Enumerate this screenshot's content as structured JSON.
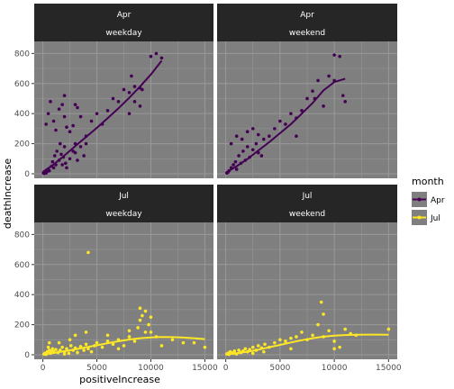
{
  "chart_data": {
    "type": "scatter",
    "xlabel": "positiveIncrease",
    "ylabel": "deathIncrease",
    "xlim": [
      -800,
      15800
    ],
    "ylim": [
      -30,
      880
    ],
    "x_ticks": [
      0,
      5000,
      10000,
      15000
    ],
    "y_ticks": [
      0,
      200,
      400,
      600,
      800
    ],
    "grid": true,
    "legend": {
      "title": "month",
      "position": "right",
      "entries": [
        "Apr",
        "Jul"
      ]
    },
    "colors": {
      "Apr": "#440154",
      "Jul": "#FDE725",
      "panel_bg": "#7F7F7F",
      "strip_bg": "#262626",
      "grid": "#999999"
    },
    "facets": [
      {
        "month": "Apr",
        "day_type": "weekday",
        "points": [
          [
            50,
            5
          ],
          [
            120,
            2
          ],
          [
            200,
            10
          ],
          [
            300,
            5
          ],
          [
            400,
            15
          ],
          [
            500,
            30
          ],
          [
            600,
            20
          ],
          [
            800,
            50
          ],
          [
            900,
            80
          ],
          [
            1000,
            40
          ],
          [
            1100,
            120
          ],
          [
            1200,
            60
          ],
          [
            1300,
            150
          ],
          [
            1500,
            90
          ],
          [
            1600,
            200
          ],
          [
            1700,
            130
          ],
          [
            1800,
            60
          ],
          [
            1900,
            110
          ],
          [
            2000,
            180
          ],
          [
            2100,
            70
          ],
          [
            2200,
            40
          ],
          [
            2500,
            100
          ],
          [
            2800,
            150
          ],
          [
            3000,
            140
          ],
          [
            3200,
            90
          ],
          [
            3500,
            180
          ],
          [
            3800,
            120
          ],
          [
            4000,
            200
          ],
          [
            300,
            330
          ],
          [
            500,
            400
          ],
          [
            700,
            480
          ],
          [
            1000,
            350
          ],
          [
            1200,
            290
          ],
          [
            1500,
            430
          ],
          [
            1800,
            460
          ],
          [
            2000,
            380
          ],
          [
            2200,
            310
          ],
          [
            2500,
            280
          ],
          [
            2800,
            320
          ],
          [
            3000,
            200
          ],
          [
            3200,
            440
          ],
          [
            3500,
            380
          ],
          [
            4000,
            250
          ],
          [
            4500,
            350
          ],
          [
            5000,
            400
          ],
          [
            5500,
            330
          ],
          [
            6000,
            420
          ],
          [
            6500,
            500
          ],
          [
            7000,
            480
          ],
          [
            7500,
            560
          ],
          [
            8000,
            540
          ],
          [
            8200,
            650
          ],
          [
            8500,
            580
          ],
          [
            9000,
            570
          ],
          [
            9200,
            560
          ],
          [
            10000,
            780
          ],
          [
            10500,
            800
          ],
          [
            11000,
            770
          ],
          [
            8000,
            400
          ],
          [
            8500,
            480
          ],
          [
            9000,
            450
          ],
          [
            2000,
            520
          ],
          [
            3000,
            460
          ]
        ],
        "trend": [
          [
            0,
            12
          ],
          [
            1000,
            62
          ],
          [
            2000,
            122
          ],
          [
            3000,
            184
          ],
          [
            4000,
            245
          ],
          [
            5000,
            305
          ],
          [
            6000,
            370
          ],
          [
            7000,
            435
          ],
          [
            8000,
            505
          ],
          [
            9000,
            580
          ],
          [
            10000,
            660
          ],
          [
            11000,
            752
          ]
        ]
      },
      {
        "month": "Apr",
        "day_type": "weekend",
        "points": [
          [
            100,
            5
          ],
          [
            200,
            10
          ],
          [
            300,
            20
          ],
          [
            500,
            40
          ],
          [
            700,
            60
          ],
          [
            900,
            80
          ],
          [
            1000,
            30
          ],
          [
            1200,
            120
          ],
          [
            1400,
            70
          ],
          [
            1600,
            150
          ],
          [
            1800,
            90
          ],
          [
            2000,
            180
          ],
          [
            2200,
            110
          ],
          [
            2500,
            160
          ],
          [
            2800,
            200
          ],
          [
            3000,
            140
          ],
          [
            3300,
            120
          ],
          [
            3500,
            230
          ],
          [
            500,
            200
          ],
          [
            1000,
            250
          ],
          [
            1500,
            230
          ],
          [
            2000,
            280
          ],
          [
            2500,
            300
          ],
          [
            3000,
            260
          ],
          [
            4000,
            250
          ],
          [
            4500,
            300
          ],
          [
            5000,
            350
          ],
          [
            5500,
            330
          ],
          [
            6000,
            400
          ],
          [
            6500,
            370
          ],
          [
            7000,
            420
          ],
          [
            7500,
            500
          ],
          [
            8000,
            550
          ],
          [
            8200,
            500
          ],
          [
            8500,
            620
          ],
          [
            9000,
            450
          ],
          [
            9500,
            650
          ],
          [
            10000,
            790
          ],
          [
            10500,
            780
          ],
          [
            10800,
            520
          ],
          [
            10000,
            620
          ],
          [
            11000,
            480
          ],
          [
            6500,
            250
          ]
        ],
        "trend": [
          [
            0,
            8
          ],
          [
            1000,
            50
          ],
          [
            2000,
            98
          ],
          [
            3000,
            155
          ],
          [
            4000,
            210
          ],
          [
            5000,
            270
          ],
          [
            6000,
            330
          ],
          [
            7000,
            400
          ],
          [
            8000,
            470
          ],
          [
            9000,
            555
          ],
          [
            10000,
            610
          ],
          [
            11000,
            632
          ]
        ]
      },
      {
        "month": "Jul",
        "day_type": "weekday",
        "points": [
          [
            100,
            5
          ],
          [
            200,
            10
          ],
          [
            300,
            2
          ],
          [
            400,
            20
          ],
          [
            500,
            15
          ],
          [
            600,
            30
          ],
          [
            700,
            10
          ],
          [
            800,
            25
          ],
          [
            900,
            40
          ],
          [
            1000,
            20
          ],
          [
            1200,
            35
          ],
          [
            1400,
            15
          ],
          [
            1600,
            30
          ],
          [
            1800,
            50
          ],
          [
            2000,
            20
          ],
          [
            2200,
            40
          ],
          [
            2400,
            10
          ],
          [
            2600,
            60
          ],
          [
            2800,
            30
          ],
          [
            3000,
            45
          ],
          [
            3200,
            15
          ],
          [
            3500,
            55
          ],
          [
            3800,
            30
          ],
          [
            4000,
            70
          ],
          [
            4200,
            40
          ],
          [
            4500,
            20
          ],
          [
            4800,
            60
          ],
          [
            5000,
            80
          ],
          [
            5500,
            50
          ],
          [
            6000,
            90
          ],
          [
            6500,
            70
          ],
          [
            7000,
            100
          ],
          [
            7500,
            60
          ],
          [
            8000,
            120
          ],
          [
            8500,
            90
          ],
          [
            8800,
            180
          ],
          [
            9000,
            230
          ],
          [
            9200,
            260
          ],
          [
            9500,
            290
          ],
          [
            9800,
            200
          ],
          [
            10000,
            150
          ],
          [
            10500,
            120
          ],
          [
            11000,
            60
          ],
          [
            12000,
            100
          ],
          [
            13000,
            80
          ],
          [
            14000,
            80
          ],
          [
            15000,
            50
          ],
          [
            4200,
            680
          ],
          [
            1500,
            80
          ],
          [
            2500,
            100
          ],
          [
            3000,
            130
          ],
          [
            4000,
            150
          ],
          [
            6000,
            130
          ],
          [
            7000,
            40
          ],
          [
            9000,
            310
          ],
          [
            8000,
            160
          ],
          [
            10000,
            250
          ],
          [
            9500,
            150
          ],
          [
            2000,
            5
          ],
          [
            500,
            50
          ],
          [
            600,
            80
          ]
        ],
        "trend": [
          [
            0,
            6
          ],
          [
            1000,
            12
          ],
          [
            2000,
            24
          ],
          [
            3000,
            36
          ],
          [
            4000,
            50
          ],
          [
            5000,
            63
          ],
          [
            6000,
            77
          ],
          [
            7000,
            90
          ],
          [
            8000,
            102
          ],
          [
            9000,
            110
          ],
          [
            10000,
            115
          ],
          [
            11000,
            118
          ],
          [
            12000,
            117
          ],
          [
            13000,
            114
          ],
          [
            14000,
            110
          ],
          [
            15000,
            104
          ]
        ]
      },
      {
        "month": "Jul",
        "day_type": "weekend",
        "points": [
          [
            100,
            5
          ],
          [
            200,
            10
          ],
          [
            300,
            2
          ],
          [
            400,
            20
          ],
          [
            500,
            15
          ],
          [
            700,
            10
          ],
          [
            800,
            25
          ],
          [
            1000,
            5
          ],
          [
            1200,
            30
          ],
          [
            1400,
            15
          ],
          [
            1600,
            25
          ],
          [
            1800,
            40
          ],
          [
            2000,
            20
          ],
          [
            2200,
            35
          ],
          [
            2500,
            50
          ],
          [
            2800,
            30
          ],
          [
            3000,
            60
          ],
          [
            3300,
            45
          ],
          [
            3600,
            70
          ],
          [
            4000,
            50
          ],
          [
            4500,
            80
          ],
          [
            5000,
            100
          ],
          [
            5500,
            90
          ],
          [
            6000,
            110
          ],
          [
            6500,
            120
          ],
          [
            7000,
            150
          ],
          [
            7500,
            100
          ],
          [
            8000,
            130
          ],
          [
            8500,
            200
          ],
          [
            8800,
            350
          ],
          [
            9000,
            270
          ],
          [
            9500,
            160
          ],
          [
            10000,
            90
          ],
          [
            10500,
            50
          ],
          [
            11000,
            170
          ],
          [
            11500,
            140
          ],
          [
            12000,
            130
          ],
          [
            15000,
            170
          ],
          [
            10000,
            40
          ],
          [
            6000,
            40
          ],
          [
            3500,
            20
          ],
          [
            2500,
            10
          ],
          [
            9000,
            120
          ]
        ],
        "trend": [
          [
            0,
            4
          ],
          [
            1000,
            10
          ],
          [
            2000,
            20
          ],
          [
            3000,
            34
          ],
          [
            4000,
            50
          ],
          [
            5000,
            66
          ],
          [
            6000,
            82
          ],
          [
            7000,
            97
          ],
          [
            8000,
            110
          ],
          [
            9000,
            120
          ],
          [
            10000,
            127
          ],
          [
            11000,
            131
          ],
          [
            12000,
            133
          ],
          [
            13000,
            134
          ],
          [
            14000,
            134
          ],
          [
            15000,
            133
          ]
        ]
      }
    ]
  }
}
